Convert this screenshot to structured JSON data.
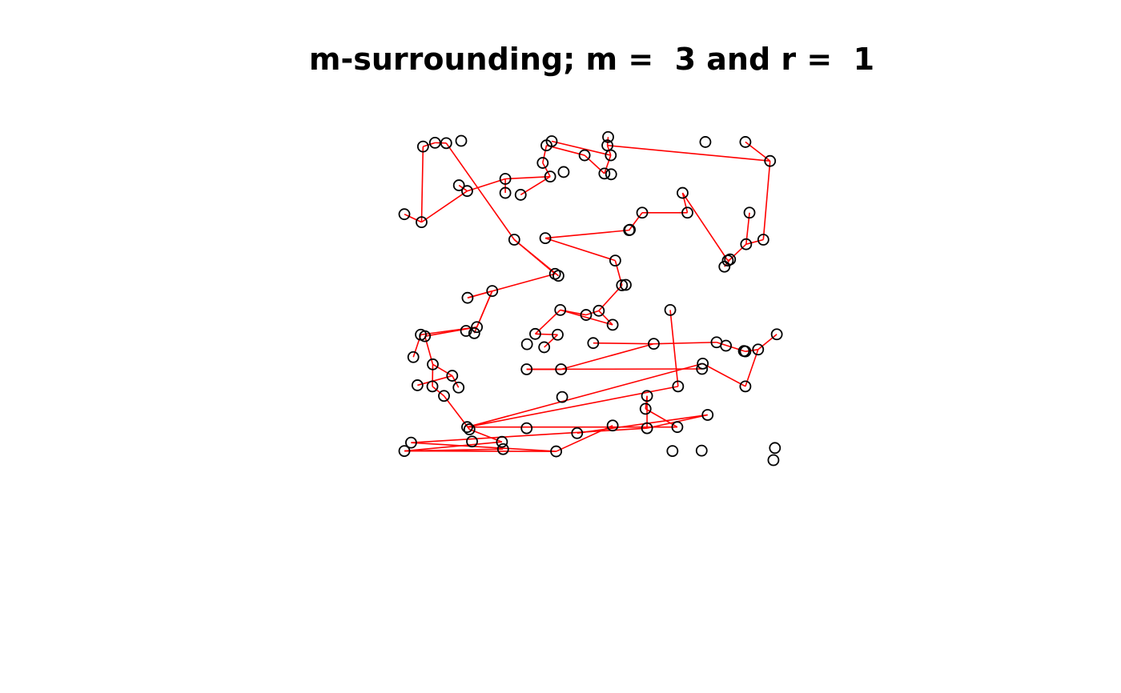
{
  "chart_data": {
    "type": "scatter",
    "title": "m-surrounding; m =  3 and r =  1",
    "xlim": [
      0,
      1
    ],
    "ylim": [
      0,
      1
    ],
    "point_color": "#000000",
    "edge_color": "#FF0000",
    "points": [
      {
        "x": 0.05,
        "y": 0.985
      },
      {
        "x": 0.082,
        "y": 0.995
      },
      {
        "x": 0.112,
        "y": 0.994
      },
      {
        "x": 0.152,
        "y": 1.0
      },
      {
        "x": 0.394,
        "y": 0.999
      },
      {
        "x": 0.545,
        "y": 1.01
      },
      {
        "x": 0.543,
        "y": 0.988
      },
      {
        "x": 0.912,
        "y": 0.997
      },
      {
        "x": 0.978,
        "y": 0.947
      },
      {
        "x": 0.38,
        "y": 0.988
      },
      {
        "x": 0.482,
        "y": 0.962
      },
      {
        "x": 0.552,
        "y": 0.962
      },
      {
        "x": 0.805,
        "y": 0.997
      },
      {
        "x": 0.37,
        "y": 0.942
      },
      {
        "x": 0.426,
        "y": 0.918
      },
      {
        "x": 0.39,
        "y": 0.906
      },
      {
        "x": 0.27,
        "y": 0.9
      },
      {
        "x": 0.535,
        "y": 0.914
      },
      {
        "x": 0.553,
        "y": 0.912
      },
      {
        "x": 0.146,
        "y": 0.883
      },
      {
        "x": 0.168,
        "y": 0.868
      },
      {
        "x": 0.27,
        "y": 0.863
      },
      {
        "x": 0.311,
        "y": 0.858
      },
      {
        "x": 0.0,
        "y": 0.807
      },
      {
        "x": 0.046,
        "y": 0.786
      },
      {
        "x": 0.744,
        "y": 0.863
      },
      {
        "x": 0.636,
        "y": 0.811
      },
      {
        "x": 0.923,
        "y": 0.811
      },
      {
        "x": 0.757,
        "y": 0.811
      },
      {
        "x": 0.603,
        "y": 0.766
      },
      {
        "x": 0.601,
        "y": 0.765
      },
      {
        "x": 0.914,
        "y": 0.728
      },
      {
        "x": 0.96,
        "y": 0.74
      },
      {
        "x": 0.294,
        "y": 0.74
      },
      {
        "x": 0.377,
        "y": 0.744
      },
      {
        "x": 0.564,
        "y": 0.685
      },
      {
        "x": 0.871,
        "y": 0.688
      },
      {
        "x": 0.856,
        "y": 0.669
      },
      {
        "x": 0.865,
        "y": 0.685
      },
      {
        "x": 0.403,
        "y": 0.65
      },
      {
        "x": 0.412,
        "y": 0.645
      },
      {
        "x": 0.582,
        "y": 0.62
      },
      {
        "x": 0.592,
        "y": 0.621
      },
      {
        "x": 0.169,
        "y": 0.587
      },
      {
        "x": 0.235,
        "y": 0.605
      },
      {
        "x": 0.417,
        "y": 0.555
      },
      {
        "x": 0.486,
        "y": 0.542
      },
      {
        "x": 0.52,
        "y": 0.553
      },
      {
        "x": 0.711,
        "y": 0.555
      },
      {
        "x": 0.557,
        "y": 0.516
      },
      {
        "x": 0.194,
        "y": 0.51
      },
      {
        "x": 0.165,
        "y": 0.5
      },
      {
        "x": 0.187,
        "y": 0.494
      },
      {
        "x": 0.044,
        "y": 0.49
      },
      {
        "x": 0.055,
        "y": 0.486
      },
      {
        "x": 0.35,
        "y": 0.492
      },
      {
        "x": 0.41,
        "y": 0.49
      },
      {
        "x": 0.996,
        "y": 0.491
      },
      {
        "x": 0.328,
        "y": 0.465
      },
      {
        "x": 0.374,
        "y": 0.457
      },
      {
        "x": 0.505,
        "y": 0.468
      },
      {
        "x": 0.667,
        "y": 0.466
      },
      {
        "x": 0.835,
        "y": 0.47
      },
      {
        "x": 0.86,
        "y": 0.461
      },
      {
        "x": 0.908,
        "y": 0.447
      },
      {
        "x": 0.912,
        "y": 0.446
      },
      {
        "x": 0.946,
        "y": 0.451
      },
      {
        "x": 0.024,
        "y": 0.431
      },
      {
        "x": 0.076,
        "y": 0.412
      },
      {
        "x": 0.798,
        "y": 0.414
      },
      {
        "x": 0.796,
        "y": 0.4
      },
      {
        "x": 0.327,
        "y": 0.399
      },
      {
        "x": 0.419,
        "y": 0.399
      },
      {
        "x": 0.128,
        "y": 0.382
      },
      {
        "x": 0.035,
        "y": 0.357
      },
      {
        "x": 0.075,
        "y": 0.354
      },
      {
        "x": 0.145,
        "y": 0.351
      },
      {
        "x": 0.732,
        "y": 0.354
      },
      {
        "x": 0.912,
        "y": 0.354
      },
      {
        "x": 0.106,
        "y": 0.329
      },
      {
        "x": 0.422,
        "y": 0.326
      },
      {
        "x": 0.649,
        "y": 0.329
      },
      {
        "x": 0.645,
        "y": 0.295
      },
      {
        "x": 0.811,
        "y": 0.279
      },
      {
        "x": 0.168,
        "y": 0.247
      },
      {
        "x": 0.174,
        "y": 0.241
      },
      {
        "x": 0.327,
        "y": 0.244
      },
      {
        "x": 0.557,
        "y": 0.251
      },
      {
        "x": 0.649,
        "y": 0.244
      },
      {
        "x": 0.73,
        "y": 0.247
      },
      {
        "x": 0.462,
        "y": 0.231
      },
      {
        "x": 0.018,
        "y": 0.206
      },
      {
        "x": 0.261,
        "y": 0.208
      },
      {
        "x": 0.181,
        "y": 0.209
      },
      {
        "x": 0.264,
        "y": 0.189
      },
      {
        "x": 0.0,
        "y": 0.184
      },
      {
        "x": 0.406,
        "y": 0.183
      },
      {
        "x": 0.717,
        "y": 0.184
      },
      {
        "x": 0.795,
        "y": 0.185
      },
      {
        "x": 0.991,
        "y": 0.192
      },
      {
        "x": 0.987,
        "y": 0.16
      }
    ],
    "segments": [
      [
        0,
        24
      ],
      [
        0,
        1
      ],
      [
        1,
        2
      ],
      [
        23,
        24
      ],
      [
        24,
        20
      ],
      [
        20,
        19
      ],
      [
        20,
        16
      ],
      [
        16,
        21
      ],
      [
        16,
        15
      ],
      [
        15,
        22
      ],
      [
        15,
        13
      ],
      [
        13,
        9
      ],
      [
        9,
        10
      ],
      [
        10,
        17
      ],
      [
        17,
        11
      ],
      [
        11,
        6
      ],
      [
        4,
        11
      ],
      [
        6,
        5
      ],
      [
        6,
        8
      ],
      [
        7,
        8
      ],
      [
        8,
        32
      ],
      [
        32,
        31
      ],
      [
        31,
        27
      ],
      [
        31,
        36
      ],
      [
        36,
        37
      ],
      [
        36,
        38
      ],
      [
        38,
        25
      ],
      [
        25,
        28
      ],
      [
        28,
        26
      ],
      [
        26,
        30
      ],
      [
        29,
        30
      ],
      [
        30,
        34
      ],
      [
        34,
        35
      ],
      [
        35,
        41
      ],
      [
        41,
        47
      ],
      [
        47,
        49
      ],
      [
        47,
        46
      ],
      [
        46,
        45
      ],
      [
        45,
        49
      ],
      [
        45,
        55
      ],
      [
        55,
        56
      ],
      [
        56,
        59
      ],
      [
        2,
        33
      ],
      [
        33,
        39
      ],
      [
        33,
        40
      ],
      [
        39,
        43
      ],
      [
        43,
        44
      ],
      [
        44,
        52
      ],
      [
        44,
        50
      ],
      [
        50,
        53
      ],
      [
        50,
        54
      ],
      [
        53,
        67
      ],
      [
        54,
        68
      ],
      [
        68,
        73
      ],
      [
        68,
        75
      ],
      [
        73,
        74
      ],
      [
        73,
        76
      ],
      [
        75,
        79
      ],
      [
        79,
        85
      ],
      [
        85,
        92
      ],
      [
        92,
        95
      ],
      [
        95,
        94
      ],
      [
        95,
        96
      ],
      [
        96,
        87
      ],
      [
        96,
        91
      ],
      [
        91,
        88
      ],
      [
        88,
        81
      ],
      [
        82,
        81
      ],
      [
        88,
        83
      ],
      [
        83,
        90
      ],
      [
        82,
        89
      ],
      [
        89,
        84
      ],
      [
        84,
        77
      ],
      [
        84,
        69
      ],
      [
        77,
        48
      ],
      [
        69,
        78
      ],
      [
        78,
        66
      ],
      [
        66,
        65
      ],
      [
        66,
        57
      ],
      [
        64,
        65
      ],
      [
        64,
        62
      ],
      [
        62,
        61
      ],
      [
        61,
        60
      ],
      [
        61,
        72
      ],
      [
        72,
        71
      ],
      [
        71,
        72
      ],
      [
        71,
        70
      ]
    ]
  }
}
